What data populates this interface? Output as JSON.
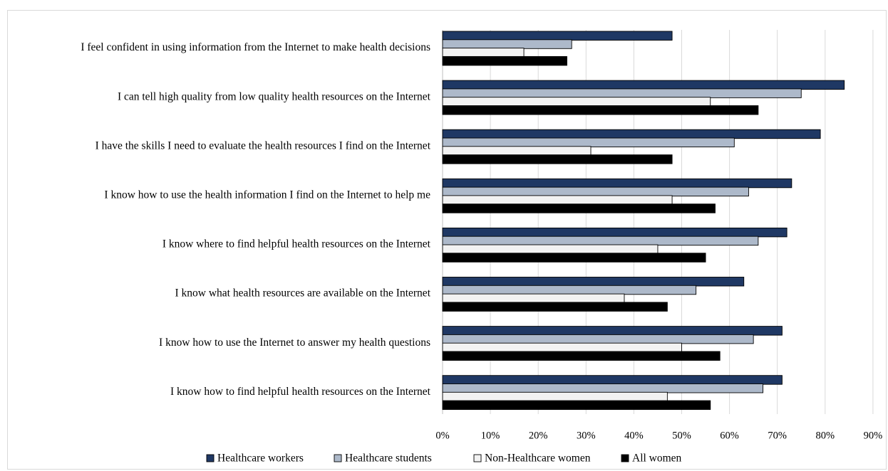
{
  "chart_data": {
    "type": "bar",
    "orientation": "horizontal",
    "categories": [
      "I feel confident in using information from the Internet to make health decisions",
      "I can tell high quality from low quality health resources on the Internet",
      "I have the skills I need to evaluate the health resources I find on the Internet",
      "I know how to use the health information I find on the Internet to help me",
      "I know where to find helpful health resources on the Internet",
      "I know what health resources are available on the Internet",
      "I know how to use the Internet to answer my health questions",
      "I know how to find helpful health resources on the Internet"
    ],
    "series": [
      {
        "name": "Healthcare workers",
        "color": "#1f3864",
        "values": [
          48,
          84,
          79,
          73,
          72,
          63,
          71,
          71
        ]
      },
      {
        "name": "Healthcare students",
        "color": "#adb9ca",
        "values": [
          27,
          75,
          61,
          64,
          66,
          53,
          65,
          67
        ]
      },
      {
        "name": "Non-Healthcare women",
        "color": "#f2f2f2",
        "values": [
          17,
          56,
          31,
          48,
          45,
          38,
          50,
          47
        ]
      },
      {
        "name": "All women",
        "color": "#000000",
        "values": [
          26,
          66,
          48,
          57,
          55,
          47,
          58,
          56
        ]
      }
    ],
    "x_ticks": [
      "0%",
      "10%",
      "20%",
      "30%",
      "40%",
      "50%",
      "60%",
      "70%",
      "80%",
      "90%"
    ],
    "xlim": [
      0,
      90
    ],
    "unit": "%",
    "grid": true,
    "legend_position": "bottom"
  }
}
